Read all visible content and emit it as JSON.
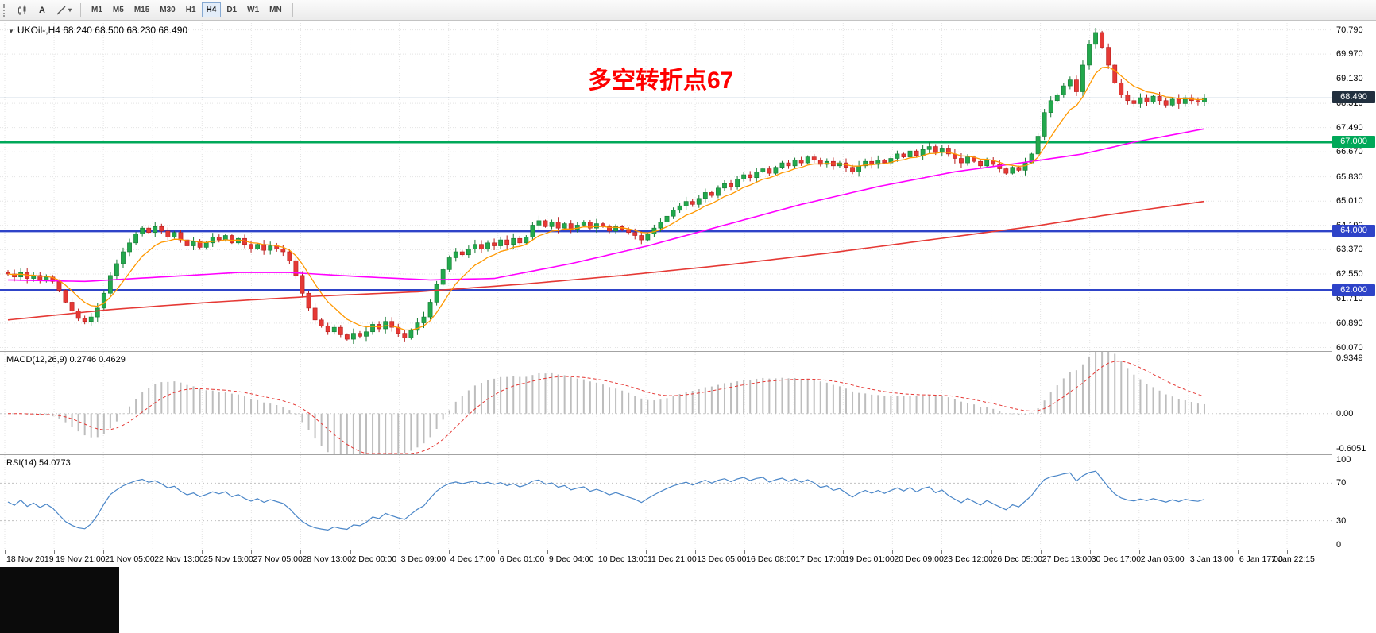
{
  "toolbar": {
    "text_tool_label": "A",
    "timeframes": [
      "M1",
      "M5",
      "M15",
      "M30",
      "H1",
      "H4",
      "D1",
      "W1",
      "MN"
    ],
    "active_timeframe": "H4"
  },
  "chart": {
    "symbol_header": "UKOil-,H4  68.240 68.500 68.230 68.490",
    "annotation": {
      "text": "多空转折点67",
      "color": "#ff0000"
    },
    "price_axis_labels": [
      "70.790",
      "69.970",
      "69.130",
      "68.310",
      "67.490",
      "66.670",
      "65.830",
      "65.010",
      "64.190",
      "63.370",
      "62.550",
      "61.710",
      "60.890",
      "60.070"
    ],
    "hlines": [
      {
        "value": 68.49,
        "label": "68.490",
        "color": "#51749e",
        "badge_bg": "#22303f",
        "width": 1,
        "current": true
      },
      {
        "value": 67.0,
        "label": "67.000",
        "color": "#00a859",
        "badge_bg": "#00a859",
        "width": 3
      },
      {
        "value": 64.0,
        "label": "64.000",
        "color": "#2e43c8",
        "badge_bg": "#2e43c8",
        "width": 3
      },
      {
        "value": 62.0,
        "label": "62.000",
        "color": "#2e43c8",
        "badge_bg": "#2e43c8",
        "width": 3
      }
    ]
  },
  "macd": {
    "label": "MACD(12,26,9) 0.2746 0.4629",
    "axis_labels": [
      "0.9349",
      "0.00",
      "-0.6051"
    ],
    "range": [
      -0.6051,
      0.9349
    ]
  },
  "rsi": {
    "label": "RSI(14) 54.0773",
    "axis_labels": [
      "100",
      "70",
      "30",
      "0"
    ],
    "levels": [
      70,
      30
    ]
  },
  "time_axis": {
    "labels": [
      "18 Nov 2019",
      "19 Nov 21:00",
      "21 Nov 05:00",
      "22 Nov 13:00",
      "25 Nov 16:00",
      "27 Nov 05:00",
      "28 Nov 13:00",
      "2 Dec 00:00",
      "3 Dec 09:00",
      "4 Dec 17:00",
      "6 Dec 01:00",
      "9 Dec 04:00",
      "10 Dec 13:00",
      "11 Dec 21:00",
      "13 Dec 05:00",
      "16 Dec 08:00",
      "17 Dec 17:00",
      "19 Dec 01:00",
      "20 Dec 09:00",
      "23 Dec 12:00",
      "26 Dec 05:00",
      "27 Dec 13:00",
      "30 Dec 17:00",
      "2 Jan 05:00",
      "3 Jan 13:00",
      "6 Jan 17:00",
      "7 Jan 22:15"
    ]
  },
  "chart_data": {
    "type": "candlestick",
    "symbol": "UKOil-",
    "timeframe": "H4",
    "ohlc_current": {
      "open": 68.24,
      "high": 68.5,
      "low": 68.23,
      "close": 68.49
    },
    "y_domain": [
      59.95,
      71.1
    ],
    "first_open": 62.6,
    "closes": [
      62.55,
      62.45,
      62.6,
      62.4,
      62.5,
      62.35,
      62.45,
      62.3,
      62.0,
      61.6,
      61.3,
      61.05,
      60.95,
      61.1,
      61.4,
      61.9,
      62.5,
      62.9,
      63.3,
      63.6,
      63.9,
      64.1,
      63.95,
      64.15,
      64.0,
      63.8,
      63.95,
      63.7,
      63.5,
      63.65,
      63.45,
      63.6,
      63.8,
      63.7,
      63.85,
      63.6,
      63.75,
      63.55,
      63.4,
      63.55,
      63.35,
      63.5,
      63.4,
      63.3,
      63.0,
      62.5,
      61.9,
      61.4,
      61.0,
      60.8,
      60.6,
      60.75,
      60.5,
      60.35,
      60.55,
      60.45,
      60.6,
      60.85,
      60.7,
      60.95,
      60.75,
      60.55,
      60.4,
      60.65,
      60.9,
      61.1,
      61.6,
      62.2,
      62.7,
      63.1,
      63.3,
      63.2,
      63.4,
      63.55,
      63.4,
      63.6,
      63.5,
      63.7,
      63.55,
      63.75,
      63.6,
      63.8,
      64.2,
      64.35,
      64.15,
      64.3,
      64.1,
      64.25,
      64.05,
      64.2,
      64.3,
      64.1,
      64.25,
      64.15,
      64.0,
      64.15,
      64.05,
      63.95,
      63.85,
      63.7,
      63.9,
      64.1,
      64.3,
      64.5,
      64.7,
      64.85,
      65.0,
      64.9,
      65.1,
      65.3,
      65.2,
      65.45,
      65.6,
      65.5,
      65.75,
      65.9,
      65.8,
      66.0,
      66.1,
      65.95,
      66.15,
      66.3,
      66.2,
      66.4,
      66.3,
      66.5,
      66.4,
      66.25,
      66.35,
      66.2,
      66.3,
      66.15,
      66.0,
      66.2,
      66.35,
      66.25,
      66.4,
      66.3,
      66.45,
      66.6,
      66.5,
      66.7,
      66.55,
      66.75,
      66.85,
      66.65,
      66.8,
      66.6,
      66.45,
      66.3,
      66.5,
      66.35,
      66.2,
      66.4,
      66.25,
      66.1,
      65.95,
      66.15,
      66.05,
      66.3,
      66.6,
      67.2,
      68.0,
      68.4,
      68.6,
      68.9,
      69.1,
      68.7,
      69.6,
      70.3,
      70.7,
      70.2,
      69.6,
      69.0,
      68.6,
      68.4,
      68.3,
      68.5,
      68.35,
      68.55,
      68.4,
      68.25,
      68.45,
      68.3,
      68.5,
      68.4,
      68.35,
      68.49
    ],
    "ma_fast_period": 8,
    "ma_mid_points": [
      [
        0,
        62.35
      ],
      [
        12,
        62.3
      ],
      [
        24,
        62.45
      ],
      [
        36,
        62.6
      ],
      [
        44,
        62.6
      ],
      [
        56,
        62.45
      ],
      [
        66,
        62.35
      ],
      [
        76,
        62.4
      ],
      [
        88,
        62.9
      ],
      [
        100,
        63.5
      ],
      [
        112,
        64.2
      ],
      [
        124,
        64.9
      ],
      [
        136,
        65.5
      ],
      [
        148,
        66.0
      ],
      [
        160,
        66.35
      ],
      [
        168,
        66.6
      ],
      [
        176,
        67.0
      ],
      [
        187,
        67.45
      ]
    ],
    "ma_slow_points": [
      [
        0,
        61.0
      ],
      [
        16,
        61.35
      ],
      [
        32,
        61.6
      ],
      [
        48,
        61.8
      ],
      [
        64,
        61.95
      ],
      [
        80,
        62.2
      ],
      [
        96,
        62.5
      ],
      [
        112,
        62.85
      ],
      [
        128,
        63.25
      ],
      [
        144,
        63.7
      ],
      [
        160,
        64.15
      ],
      [
        172,
        64.55
      ],
      [
        187,
        65.0
      ]
    ],
    "colors": {
      "up": "#22a84c",
      "up_border": "#157a33",
      "down": "#e53935",
      "down_border": "#b71c1c",
      "ma_fast": "#ff9800",
      "ma_mid": "#ff00ff",
      "ma_slow": "#e53935",
      "macd_hist": "#bdbdbd",
      "macd_signal": "#e53935",
      "rsi": "#4a86c8",
      "grid": "#e4e4e4"
    }
  }
}
